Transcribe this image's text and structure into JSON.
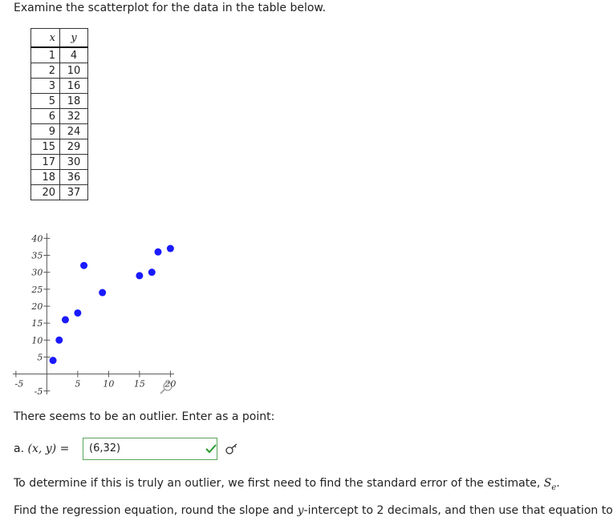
{
  "instruction": "Examine the scatterplot for the data in the table below.",
  "table": {
    "header": [
      "x",
      "y"
    ],
    "rows": [
      [
        1,
        4
      ],
      [
        2,
        10
      ],
      [
        3,
        16
      ],
      [
        5,
        18
      ],
      [
        6,
        32
      ],
      [
        9,
        24
      ],
      [
        15,
        29
      ],
      [
        17,
        30
      ],
      [
        18,
        36
      ],
      [
        20,
        37
      ]
    ]
  },
  "chart": {
    "type": "scatter",
    "color": "#1a1aff",
    "x": [
      1,
      2,
      3,
      5,
      6,
      9,
      15,
      17,
      18,
      20
    ],
    "y": [
      4,
      10,
      16,
      18,
      32,
      24,
      29,
      30,
      36,
      37
    ],
    "xlim": [
      -5.5,
      20.6
    ],
    "ylim": [
      -6,
      41.5
    ],
    "xticks": [
      -5,
      5,
      10,
      15,
      20
    ],
    "yticks": [
      -5,
      5,
      10,
      15,
      20,
      25,
      30,
      35,
      40
    ]
  },
  "outlier_prompt": "There seems to be an outlier. Enter as a point:",
  "answer": {
    "prefix": "a.",
    "expression": "(x, y)",
    "equals": "=",
    "value": "(6,32)"
  },
  "para1": {
    "text": "To determine if this is truly an outlier, we first need to find the standard error of the estimate, ",
    "symbol": "S",
    "subscript": "e",
    "end": "."
  },
  "para2": {
    "before": "Find the regression equation, round the slope and ",
    "variable": "y",
    "after": "-intercept to 2 decimals, and then use that equation to"
  }
}
